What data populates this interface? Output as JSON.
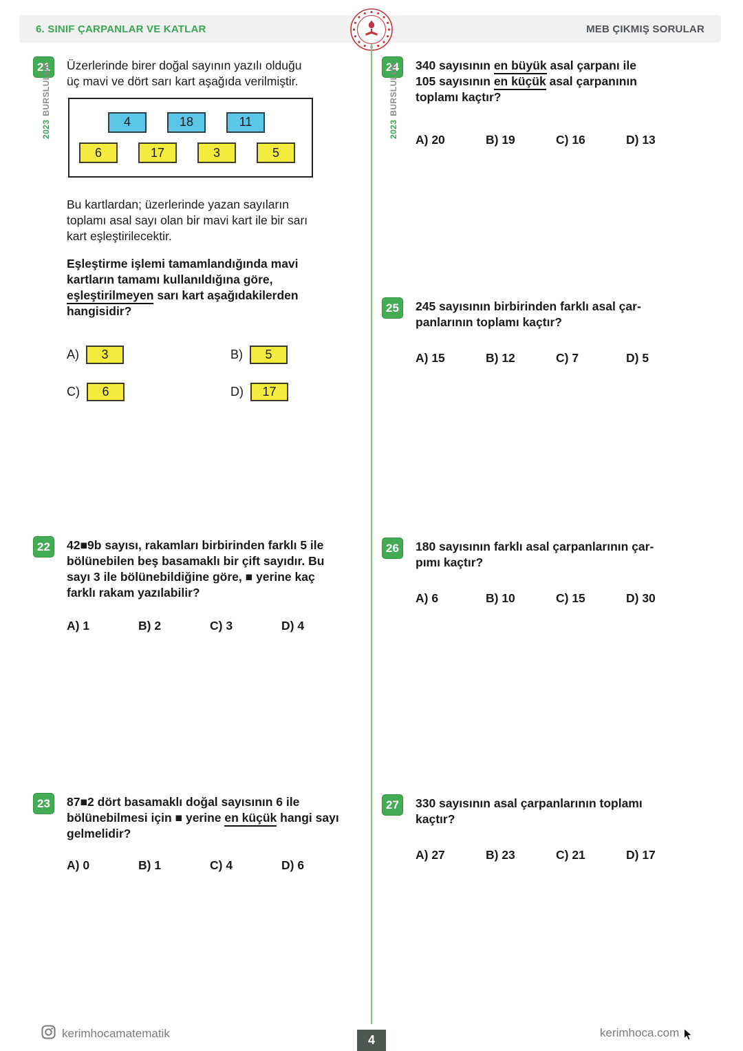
{
  "header": {
    "left_title": "6. SINIF ÇARPANLAR VE KATLAR",
    "right_title": "MEB ÇIKMIŞ SORULAR"
  },
  "side_label": {
    "year": "2023",
    "text": "BURSLULUK"
  },
  "colors": {
    "accent_green": "#3aa655",
    "badge_green": "#43ab53",
    "divider_green": "#79c489",
    "card_blue": "#5cc6e6",
    "card_yellow": "#f4eb3e",
    "page_number_box": "#4e5750"
  },
  "questions": {
    "q21": {
      "number": "21",
      "intro_lines": [
        "Üzerlerinde birer doğal sayının yazılı olduğu",
        "üç mavi ve dört sarı kart aşağıda verilmiştir."
      ],
      "blue_cards": [
        "4",
        "18",
        "11"
      ],
      "yellow_cards": [
        "6",
        "17",
        "3",
        "5"
      ],
      "body_lines": [
        "Bu kartlardan; üzerlerinde yazan sayıların",
        "toplamı asal sayı olan bir mavi kart ile bir sarı",
        "kart eşleştirilecektir."
      ],
      "prompt_parts": [
        {
          "t": "Eşleştirme işlemi tamamlandığında mavi\nkartların tamamı kullanıldığına göre,\n"
        },
        {
          "t": "eşleştirilmeyen",
          "u": true
        },
        {
          "t": " sarı kart aşağıdakilerden\nhangisidir?"
        }
      ],
      "options": [
        {
          "label": "A)",
          "value": "3"
        },
        {
          "label": "B)",
          "value": "5"
        },
        {
          "label": "C)",
          "value": "6"
        },
        {
          "label": "D)",
          "value": "17"
        }
      ]
    },
    "q22": {
      "number": "22",
      "prompt_lines": [
        "42■9b sayısı, rakamları birbirinden farklı 5 ile",
        "bölünebilen beş basamaklı bir çift sayıdır. Bu",
        "sayı 3 ile bölünebildiğine göre, ■ yerine kaç",
        "farklı rakam yazılabilir?"
      ],
      "options": [
        "A) 1",
        "B) 2",
        "C) 3",
        "D) 4"
      ]
    },
    "q23": {
      "number": "23",
      "prompt_parts": [
        {
          "t": "87■2 dört basamaklı doğal sayısının 6 ile\nbölünebilmesi için ■ yerine "
        },
        {
          "t": "en küçük",
          "u": true
        },
        {
          "t": " hangi sayı\ngelmelidir?"
        }
      ],
      "options": [
        "A) 0",
        "B) 1",
        "C) 4",
        "D) 6"
      ]
    },
    "q24": {
      "number": "24",
      "prompt_parts": [
        {
          "t": "340 sayısının "
        },
        {
          "t": "en büyük",
          "u": true
        },
        {
          "t": " asal çarpanı ile\n105 sayısının "
        },
        {
          "t": "en küçük",
          "u": true
        },
        {
          "t": " asal çarpanının\ntoplamı kaçtır?"
        }
      ],
      "options": [
        "A) 20",
        "B) 19",
        "C) 16",
        "D) 13"
      ]
    },
    "q25": {
      "number": "25",
      "prompt_lines": [
        "245 sayısının birbirinden farklı asal çar-",
        "panlarının toplamı kaçtır?"
      ],
      "options": [
        "A) 15",
        "B) 12",
        "C) 7",
        "D) 5"
      ]
    },
    "q26": {
      "number": "26",
      "prompt_lines": [
        "180 sayısının farklı asal çarpanlarının çar-",
        "pımı kaçtır?"
      ],
      "options": [
        "A) 6",
        "B) 10",
        "C) 15",
        "D) 30"
      ]
    },
    "q27": {
      "number": "27",
      "prompt_lines": [
        "330 sayısının asal çarpanlarının toplamı",
        "kaçtır?"
      ],
      "options": [
        "A) 27",
        "B) 23",
        "C) 21",
        "D) 17"
      ]
    }
  },
  "footer": {
    "instagram": "kerimhocamatematik",
    "website": "kerimhoca.com",
    "page_number": "4"
  }
}
